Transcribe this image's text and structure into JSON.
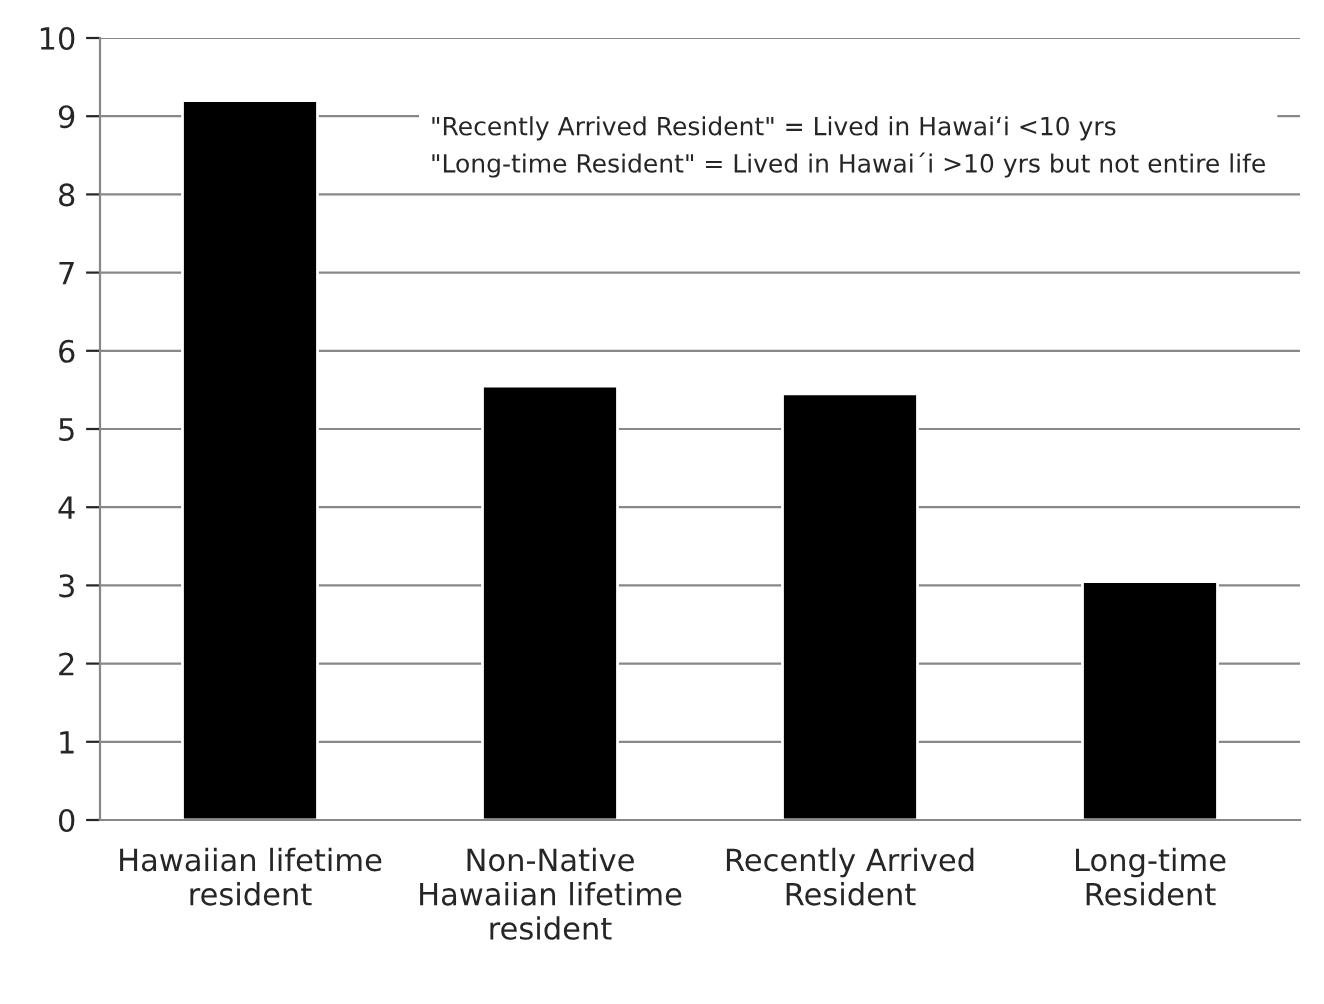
{
  "chart_data": {
    "type": "bar",
    "categories": [
      "Hawaiian lifetime resident",
      "Non-Native Hawaiian lifetime resident",
      "Recently Arrived Resident",
      "Long-time Resident"
    ],
    "values": [
      9.2,
      5.55,
      5.45,
      3.05
    ],
    "color": "#000000",
    "ylim": [
      0,
      10
    ],
    "yticks": [
      0,
      1,
      2,
      3,
      4,
      5,
      6,
      7,
      8,
      9,
      10
    ],
    "grid": "y",
    "annotations": [
      "\"Recently Arrived Resident\" = Lived in Hawaiʻi <10 yrs\n\"Long-time Resident\" = Lived in Hawai´i >10 yrs but not entire life"
    ]
  }
}
